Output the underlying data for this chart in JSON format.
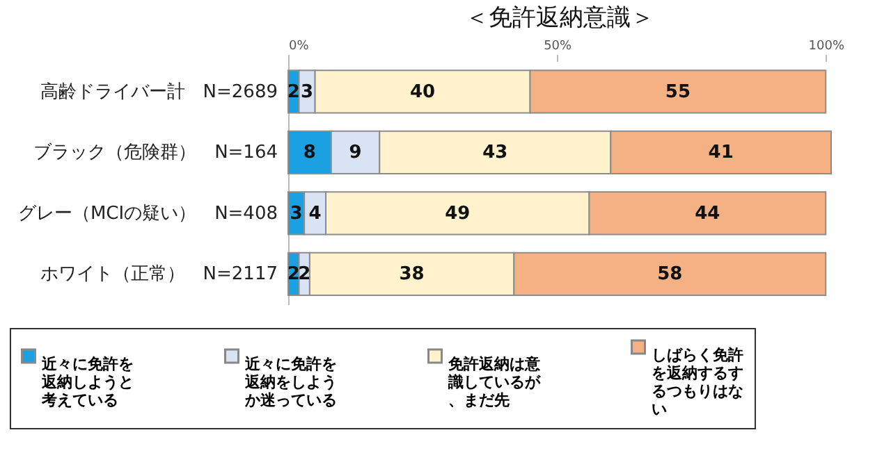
{
  "chart_data": {
    "type": "bar",
    "orientation": "horizontal",
    "stacked": true,
    "title": "＜免許返納意識＞",
    "categories": [
      "高齢ドライバー計　N=2689",
      "ブラック（危険群）　N=164",
      "グレー（MCIの疑い）　N=408",
      "ホワイト（正常）　N=2117"
    ],
    "series": [
      {
        "name": "近々に免許を返納しようと考えている",
        "color": "#1ba1e2",
        "values": [
          2,
          8,
          3,
          2
        ]
      },
      {
        "name": "近々に免許を返納をしようか迷っている",
        "color": "#dae3f3",
        "values": [
          3,
          9,
          4,
          2
        ]
      },
      {
        "name": "免許返納は意識しているが、まだ先",
        "color": "#fff2cc",
        "values": [
          40,
          43,
          49,
          38
        ]
      },
      {
        "name": "しばらく免許を返納するするつもりはない",
        "color": "#f4b183",
        "values": [
          55,
          41,
          44,
          58
        ]
      }
    ],
    "xlim": [
      0,
      101
    ],
    "xticks": [
      {
        "value": 0,
        "label": "0%"
      },
      {
        "value": 50,
        "label": "50%"
      },
      {
        "value": 100,
        "label": "100%"
      }
    ],
    "data_labels": true,
    "legend": "bottom",
    "grid": false
  }
}
